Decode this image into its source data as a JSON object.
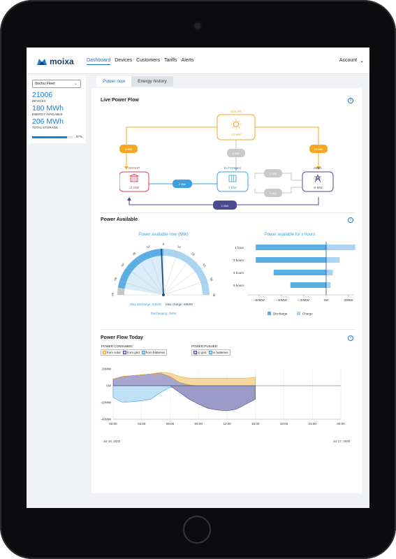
{
  "nav": {
    "logo": "moixa",
    "links": [
      "Dashboard",
      "Devices",
      "Customers",
      "Tariffs",
      "Alerts"
    ],
    "active": "Dashboard",
    "account": "Account"
  },
  "fleet": {
    "selected": "Itochu Fleet",
    "devices_value": "21006",
    "devices_label": "DEVICES",
    "energy_value": "180 MWh",
    "energy_label": "ENERGY AVAILABLE",
    "storage_value": "206 MWh",
    "storage_label": "TOTAL STORAGE",
    "storage_pct_label": "87%",
    "storage_pct": 0.87
  },
  "tabs": [
    "Power now",
    "Energy history"
  ],
  "live_flow": {
    "title": "Live Power Flow",
    "nodes": {
      "solar": {
        "label": "SOLAR",
        "value": "14 MW"
      },
      "batteries": {
        "label": "BATTERIES",
        "value": "2 MW"
      },
      "group": {
        "label": "GROUP",
        "value": "11 MW"
      },
      "grid": {
        "label": "GRID",
        "value": "-9 MW"
      }
    },
    "pills": {
      "solar_to_group": "4 MW",
      "solar_to_batteries": "0 MW",
      "solar_to_grid": "10 MW",
      "batteries_to_group": "2 MW",
      "grid_to_batteries": "0 MW",
      "batteries_to_grid": "0 MW",
      "grid_to_group": "1 MW"
    }
  },
  "power_available": {
    "title": "Power Available",
    "gauge_title": "Power available now (MW)",
    "gauge_ticks": [
      "-70",
      "-56",
      "-42",
      "-28",
      "-14",
      "0",
      "14",
      "28",
      "42",
      "56",
      "70"
    ],
    "max_discharge": "Max discharge: 63MW",
    "max_charge": "Max charge: 69MW",
    "discharging": "Discharging: 2MW",
    "hours_title": "Power available for x hours",
    "hours_ticks": [
      "−60MW",
      "−40MW",
      "−20MW",
      "0W",
      "20MW"
    ],
    "legend_discharge": "Discharge",
    "legend_charge": "Charge"
  },
  "flow_today": {
    "title": "Power Flow Today",
    "consumed_label": "POWER CONSUMED:",
    "consumed_items": [
      "from solar",
      "from grid",
      "from batteries"
    ],
    "pushed_label": "POWER PUSHED:",
    "pushed_items": [
      "to grid",
      "to batteries"
    ],
    "y_ticks": [
      "20MW",
      "0W",
      "−20MW",
      "−40MW"
    ],
    "x_ticks": [
      "00:00",
      "03:00",
      "06:00",
      "09:00",
      "12:00",
      "15:00",
      "18:00",
      "21:00",
      "00:00"
    ],
    "date_start": "Jul 16, 2020",
    "date_end": "Jul 17, 2020"
  },
  "colors": {
    "solar": "#f5a623",
    "batteries": "#3d9fe0",
    "group": "#e0445a",
    "grid": "#4b4a8e",
    "accent": "#1f7bd4"
  },
  "chart_data": [
    {
      "type": "gauge",
      "title": "Power available now (MW)",
      "range": [
        -70,
        70
      ],
      "needle": -2,
      "discharge_available": 63,
      "charge_available": 69
    },
    {
      "type": "bar",
      "title": "Power available for x hours",
      "categories": [
        "1 hour",
        "2 hours",
        "4 hours",
        "6 hours"
      ],
      "series": [
        {
          "name": "Discharge",
          "values": [
            -63,
            -63,
            -47,
            -32
          ]
        },
        {
          "name": "Charge",
          "values": [
            26,
            12,
            6,
            4
          ]
        }
      ],
      "xlim": [
        -70,
        25
      ]
    },
    {
      "type": "area",
      "title": "Power Flow Today",
      "x": [
        "00:00",
        "01:00",
        "02:00",
        "03:00",
        "04:00",
        "05:00",
        "06:00",
        "07:00",
        "08:00",
        "09:00",
        "10:00",
        "11:00",
        "12:00",
        "13:00",
        "14:00",
        "15:00"
      ],
      "series": [
        {
          "name": "from grid",
          "values": [
            8,
            11,
            12,
            13,
            14,
            15,
            11,
            4,
            1,
            0,
            0,
            0,
            0,
            0,
            0,
            0
          ]
        },
        {
          "name": "from solar",
          "values": [
            0,
            0,
            0,
            0,
            0,
            1,
            4,
            7,
            8,
            9,
            9,
            9,
            9,
            9,
            9,
            10
          ]
        },
        {
          "name": "from batteries",
          "values": [
            0,
            0,
            0,
            0,
            0,
            0,
            0,
            0,
            0,
            0,
            0,
            0,
            0,
            0,
            0,
            0
          ]
        },
        {
          "name": "to grid",
          "values": [
            0,
            0,
            0,
            0,
            0,
            0,
            0,
            -8,
            -16,
            -22,
            -27,
            -29,
            -30,
            -28,
            -22,
            -16
          ]
        },
        {
          "name": "to batteries",
          "values": [
            -14,
            -20,
            -19,
            -18,
            -16,
            -8,
            -2,
            -2,
            -1,
            -1,
            -1,
            -1,
            -1,
            -1,
            -1,
            -1
          ]
        }
      ],
      "ylim": [
        -40,
        20
      ]
    }
  ]
}
